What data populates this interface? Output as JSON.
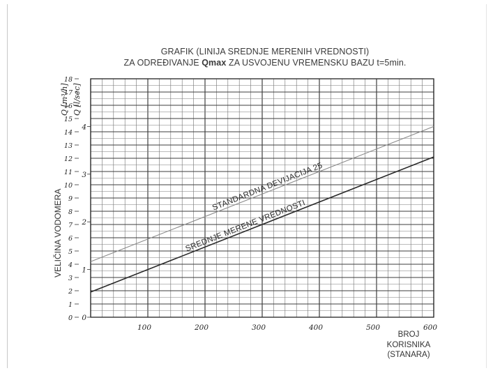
{
  "page": {
    "title_line1": "GRAFIK (LINIJA SREDNJE MERENIH VREDNOSTI)",
    "title_line2_prefix": "ZA ODREĐIVANJE ",
    "title_line2_bold": "Qmax",
    "title_line2_suffix": " ZA USVOJENU VREMENSKU BAZU t=5min."
  },
  "chart_data": {
    "type": "line",
    "x": [
      0,
      600
    ],
    "xlim": [
      0,
      600
    ],
    "ylim": [
      0,
      16
    ],
    "grid": true,
    "x_ticks": [
      100,
      200,
      300,
      400,
      500,
      600
    ],
    "xlabel": [
      "BROJ",
      "KORISNIKA",
      "(STANARA)"
    ],
    "ylabel": "VELIČINA VODOMERA",
    "y_unit_labels": [
      "Q [m³/h]",
      "Q [l/sec]"
    ],
    "y_ticks_m3h": [
      0,
      1,
      2,
      3,
      4,
      5,
      6,
      7,
      8,
      9,
      10,
      11,
      12,
      13,
      14,
      15,
      16,
      17,
      18
    ],
    "y_ticks_lsec": [
      0,
      1,
      2,
      3,
      4
    ],
    "y_ticks_lsec_values_m3h": [
      0,
      3.6,
      7.2,
      10.8,
      14.4
    ],
    "series": [
      {
        "name": "STANDARDNA DEVIJACIJA 25",
        "values": [
          4.2,
          14.4
        ],
        "color": "#8a8a8a"
      },
      {
        "name": "SREDNJE MERENE VREDNOSTI",
        "values": [
          1.9,
          12.1
        ],
        "color": "#2a2a2a"
      }
    ]
  }
}
